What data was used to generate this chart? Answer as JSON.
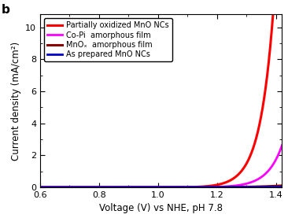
{
  "title": "",
  "panel_label": "b",
  "xlabel": "Voltage (V) vs NHE, pH 7.8",
  "ylabel": "Current density (mA/cm²)",
  "xlim": [
    0.6,
    1.42
  ],
  "ylim": [
    0,
    10.8
  ],
  "yticks": [
    0,
    2,
    4,
    6,
    8,
    10
  ],
  "xticks": [
    0.6,
    0.8,
    1.0,
    1.2,
    1.4
  ],
  "background_color": "#ffffff",
  "curves": [
    {
      "label": "Partially oxidized MnO NCs",
      "color": "#ff0000",
      "linewidth": 2.2,
      "onset": 1.08,
      "A": 0.012,
      "k": 22.0
    },
    {
      "label": "Co-Pi  amorphous film",
      "color": "#ff00ff",
      "linewidth": 2.0,
      "onset": 1.13,
      "A": 0.008,
      "k": 20.0
    },
    {
      "label": "MnOₓ  amorphous film",
      "color": "#8b0000",
      "linewidth": 2.2,
      "onset": 0.85,
      "A": 0.0002,
      "k": 11.0
    },
    {
      "label": "As prepared MnO NCs",
      "color": "#0000cd",
      "linewidth": 2.0,
      "onset": 0.75,
      "A": 3e-05,
      "k": 9.0
    }
  ]
}
